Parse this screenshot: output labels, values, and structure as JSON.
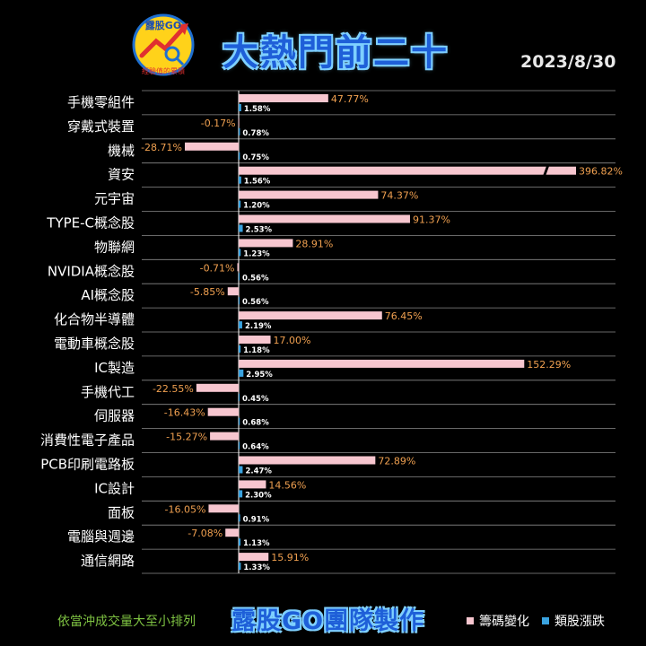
{
  "header": {
    "logo_text": "露股GO",
    "logo_subtext": "經驗值的累積",
    "title": "大熱門前二十",
    "date": "2023/8/30"
  },
  "footer": {
    "note": "依當沖成交量大至小排列",
    "credit": "露股GO團隊製作",
    "legend_chip": "籌碼變化",
    "legend_sector": "類股漲跌"
  },
  "colors": {
    "chip": "#f7c6cf",
    "sector": "#3aa3e0",
    "chip_label": "#f0a050",
    "grid": "#8a8a8a",
    "title": "#1e5fd8"
  },
  "chart_data": {
    "type": "bar",
    "orientation": "horizontal",
    "categories": [
      "手機零組件",
      "穿戴式裝置",
      "機械",
      "資安",
      "元宇宙",
      "TYPE-C概念股",
      "物聯網",
      "NVIDIA概念股",
      "AI概念股",
      "化合物半導體",
      "電動車概念股",
      "IC製造",
      "手機代工",
      "伺服器",
      "消費性電子產品",
      "PCB印刷電路板",
      "IC設計",
      "面板",
      "電腦與週邊",
      "通信網路"
    ],
    "series": [
      {
        "name": "籌碼變化",
        "values": [
          47.77,
          -0.17,
          -28.71,
          396.82,
          74.37,
          91.37,
          28.91,
          -0.71,
          -5.85,
          76.45,
          17.0,
          152.29,
          -22.55,
          -16.43,
          -15.27,
          72.89,
          14.56,
          -16.05,
          -7.08,
          15.91
        ],
        "labels": [
          "47.77%",
          "-0.17%",
          "-28.71%",
          "396.82%",
          "74.37%",
          "91.37%",
          "28.91%",
          "-0.71%",
          "-5.85%",
          "76.45%",
          "17.00%",
          "152.29%",
          "-22.55%",
          "-16.43%",
          "-15.27%",
          "72.89%",
          "14.56%",
          "-16.05%",
          "-7.08%",
          "15.91%"
        ]
      },
      {
        "name": "類股漲跌",
        "values": [
          1.58,
          0.78,
          0.75,
          1.56,
          1.2,
          2.53,
          1.23,
          0.56,
          0.56,
          2.19,
          1.18,
          2.95,
          0.45,
          0.68,
          0.64,
          2.47,
          2.3,
          0.91,
          1.13,
          1.33
        ],
        "labels": [
          "1.58%",
          "0.78%",
          "0.75%",
          "1.56%",
          "1.20%",
          "2.53%",
          "1.23%",
          "0.56%",
          "0.56%",
          "2.19%",
          "1.18%",
          "2.95%",
          "0.45%",
          "0.68%",
          "0.64%",
          "2.47%",
          "2.30%",
          "0.91%",
          "1.13%",
          "1.33%"
        ]
      }
    ],
    "axis_break": {
      "category": "資安",
      "series": "籌碼變化"
    },
    "grid": true,
    "legend": "bottom-right"
  }
}
